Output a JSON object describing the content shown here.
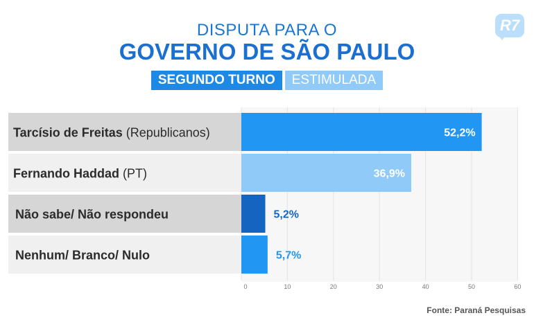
{
  "header": {
    "title_line1": "DISPUTA PARA O",
    "title_line2": "GOVERNO DE SÃO PAULO",
    "tag_round": "SEGUNDO TURNO",
    "tag_type": "ESTIMULADA",
    "logo": "R7"
  },
  "source": "Fonte: Paraná Pesquisas",
  "colors": {
    "bar_1": "#2196f3",
    "bar_2": "#90caf9",
    "bar_3": "#1565c0",
    "bar_4": "#2196f3",
    "label_bg_light": "#f0f0f0",
    "label_bg_dark": "#d6d6d6",
    "value_dark": "#1565c0"
  },
  "chart_data": {
    "type": "bar",
    "orientation": "horizontal",
    "categories": [
      {
        "name": "Tarcísio de Freitas",
        "party": "(Republicanos)"
      },
      {
        "name": "Fernando Haddad",
        "party": "(PT)"
      },
      {
        "name": "Não sabe/ Não respondeu",
        "party": ""
      },
      {
        "name": "Nenhum/ Branco/ Nulo",
        "party": ""
      }
    ],
    "values": [
      52.2,
      36.9,
      5.2,
      5.7
    ],
    "value_labels": [
      "52,2%",
      "36,9%",
      "5,2%",
      "5,7%"
    ],
    "xlim": [
      0,
      60
    ],
    "xticks": [
      "0",
      "10",
      "20",
      "30",
      "40",
      "50",
      "60"
    ],
    "grid": true
  }
}
